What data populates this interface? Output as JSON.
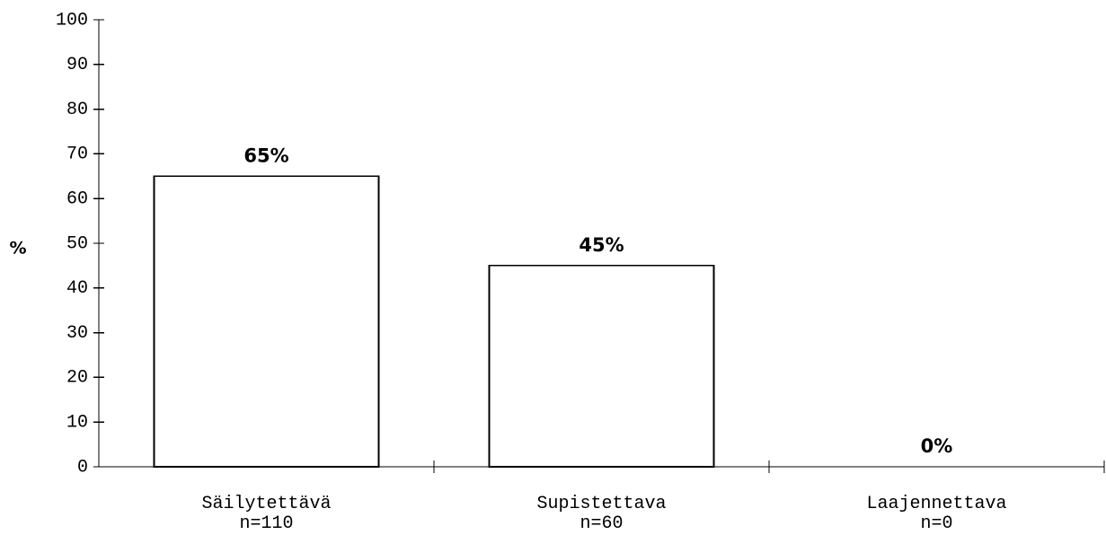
{
  "chart_data": {
    "type": "bar",
    "categories": [
      "Säilytettävä",
      "Supistettava",
      "Laajennettava"
    ],
    "category_counts": [
      "n=110",
      "n=60",
      "n=0"
    ],
    "values": [
      65,
      45,
      0
    ],
    "data_labels": [
      "65%",
      "45%",
      "0%"
    ],
    "ylabel": "%",
    "xlabel": "",
    "title": "",
    "ylim": [
      0,
      100
    ],
    "yticks": [
      0,
      10,
      20,
      30,
      40,
      50,
      60,
      70,
      80,
      90,
      100
    ],
    "grid": false,
    "bar_fill": "#ffffff",
    "bar_stroke": "#000000"
  }
}
